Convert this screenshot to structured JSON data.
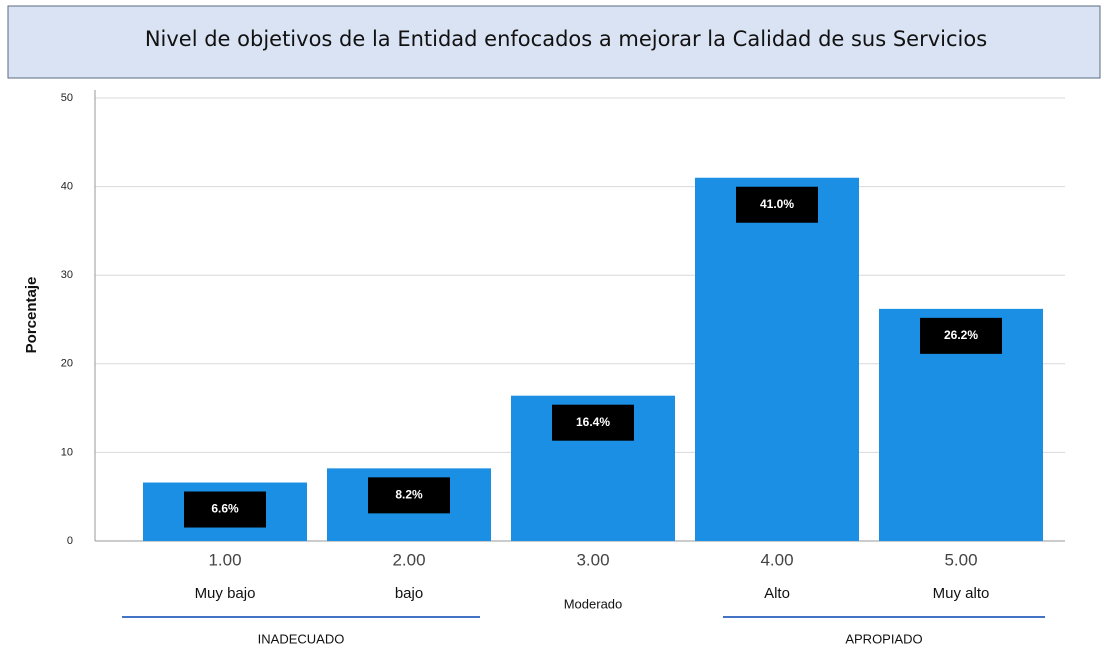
{
  "chart_data": {
    "type": "bar",
    "title": "Nivel de objetivos de la Entidad enfocados a mejorar la Calidad de sus Servicios",
    "y_label": "Porcentaje",
    "categories": [
      "1.00",
      "2.00",
      "3.00",
      "4.00",
      "5.00"
    ],
    "level_labels": [
      "Muy bajo",
      "bajo",
      "Moderado",
      "Alto",
      "Muy alto"
    ],
    "groups": [
      "INADECUADO",
      "APROPIADO"
    ],
    "values": [
      6.6,
      8.2,
      16.4,
      41.0,
      26.2
    ],
    "value_labels": [
      "6.6%",
      "8.2%",
      "16.4%",
      "41.0%",
      "26.2%"
    ],
    "color": "#1a8fe3",
    "ylim": [
      0,
      50
    ],
    "yticks": [
      0,
      10,
      20,
      30,
      40,
      50
    ],
    "grid": true
  }
}
